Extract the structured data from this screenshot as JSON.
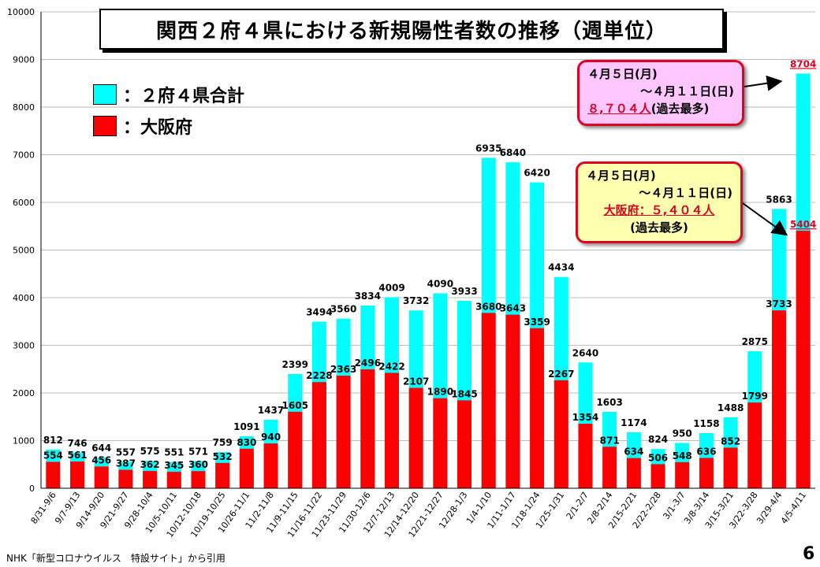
{
  "title": "関西２府４県における新規陽性者数の推移（週単位）",
  "legend": [
    {
      "label": "：２府４県合計",
      "color": "#00ffff"
    },
    {
      "label": "：大阪府",
      "color": "#ff0000"
    }
  ],
  "callouts": {
    "total": {
      "line1": "４月５日(月)",
      "line2": "～４月１１日(日)",
      "highlight": "８,７０４人",
      "suffix": "(過去最多)"
    },
    "osaka": {
      "line1": "４月５日(月)",
      "line2": "～４月１１日(日)",
      "highlight": "大阪府：５,４０４人",
      "suffix": "(過去最多)"
    }
  },
  "source": "NHK「新型コロナウイルス　特設サイト」から引用",
  "page_number": "6",
  "chart_data": {
    "type": "bar",
    "title": "関西２府４県における新規陽性者数の推移（週単位）",
    "ylim": [
      0,
      10000
    ],
    "yticks": [
      0,
      1000,
      2000,
      3000,
      4000,
      5000,
      6000,
      7000,
      8000,
      9000,
      10000
    ],
    "categories": [
      "8/31-9/6",
      "9/7-9/13",
      "9/14-9/20",
      "9/21-9/27",
      "9/28-10/4",
      "10/5-10/11",
      "10/12-10/18",
      "10/19-10/25",
      "10/26-11/1",
      "11/2-11/8",
      "11/9-11/15",
      "11/16-11/22",
      "11/23-11/29",
      "11/30-12/6",
      "12/7-12/13",
      "12/14-12/20",
      "12/21-12/27",
      "12/28-1/3",
      "1/4-1/10",
      "1/11-1/17",
      "1/18-1/24",
      "1/25-1/31",
      "2/1-2/7",
      "2/8-2/14",
      "2/15-2/21",
      "2/22-2/28",
      "3/1-3/7",
      "3/8-3/14",
      "3/15-3/21",
      "3/22-3/28",
      "3/29-4/4",
      "4/5-4/11"
    ],
    "series": [
      {
        "name": "２府４県合計",
        "color": "#00ffff",
        "values": [
          812,
          746,
          644,
          557,
          575,
          551,
          571,
          759,
          1091,
          1437,
          2399,
          3494,
          3560,
          3834,
          4009,
          3732,
          4090,
          3933,
          6935,
          6840,
          6420,
          4434,
          2640,
          1603,
          1174,
          824,
          950,
          1158,
          1488,
          2875,
          5863,
          8704
        ]
      },
      {
        "name": "大阪府",
        "color": "#ff0000",
        "values": [
          554,
          561,
          456,
          387,
          362,
          345,
          360,
          532,
          830,
          940,
          1605,
          2228,
          2363,
          2496,
          2422,
          2107,
          1890,
          1845,
          3680,
          3643,
          3359,
          2267,
          1354,
          871,
          634,
          506,
          548,
          636,
          852,
          1799,
          3733,
          5404
        ]
      }
    ]
  }
}
